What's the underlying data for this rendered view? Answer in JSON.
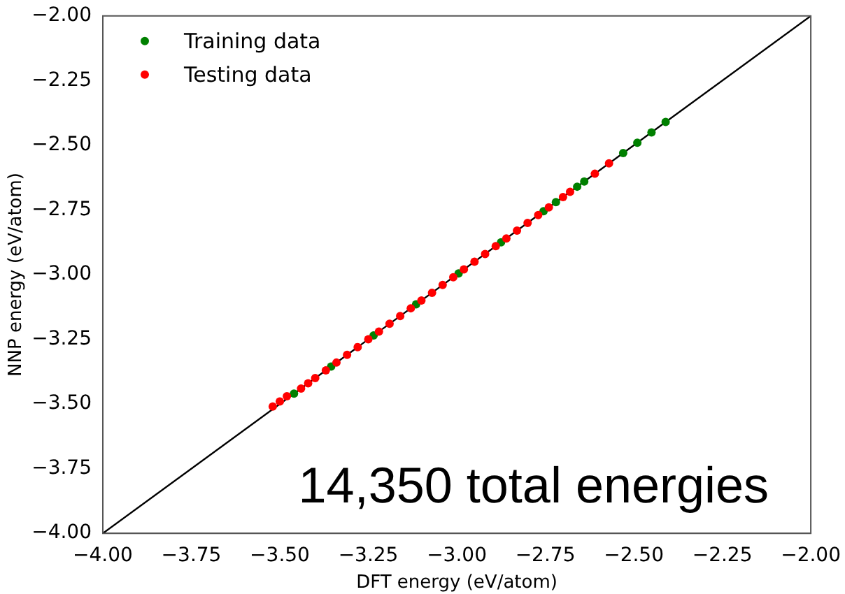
{
  "chart_data": {
    "type": "scatter",
    "xlabel": "DFT energy (eV/atom)",
    "ylabel": "NNP energy (eV/atom)",
    "xlim": [
      -4,
      -2
    ],
    "ylim": [
      -4,
      -2
    ],
    "xticks": [
      {
        "value": -4,
        "label": "−4.00"
      },
      {
        "value": -3.75,
        "label": "−3.75"
      },
      {
        "value": -3.5,
        "label": "−3.50"
      },
      {
        "value": -3.25,
        "label": "−3.25"
      },
      {
        "value": -3,
        "label": "−3.00"
      },
      {
        "value": -2.75,
        "label": "−2.75"
      },
      {
        "value": -2.5,
        "label": "−2.50"
      },
      {
        "value": -2.25,
        "label": "−2.25"
      },
      {
        "value": -2,
        "label": "−2.00"
      }
    ],
    "yticks": [
      {
        "value": -4,
        "label": "−4.00"
      },
      {
        "value": -3.75,
        "label": "−3.75"
      },
      {
        "value": -3.5,
        "label": "−3.50"
      },
      {
        "value": -3.25,
        "label": "−3.25"
      },
      {
        "value": -3,
        "label": "−3.00"
      },
      {
        "value": -2.75,
        "label": "−2.75"
      },
      {
        "value": -2.5,
        "label": "−2.50"
      },
      {
        "value": -2.25,
        "label": "−2.25"
      },
      {
        "value": -2,
        "label": "−2.00"
      }
    ],
    "grid": false,
    "legend": "top left",
    "marker": "circle",
    "annotations": [
      "14,350 total energies"
    ],
    "series": [
      {
        "type": "line",
        "color": "#000000",
        "marker": "none",
        "x": [
          -4,
          -2
        ],
        "values": [
          -4,
          -2
        ]
      },
      {
        "name": "Training data",
        "color": "#008000",
        "x": [
          -3.46,
          -3.355,
          -3.235,
          -3.115,
          -2.995,
          -2.875,
          -2.755,
          -2.72,
          -2.66,
          -2.64,
          -2.53,
          -2.49,
          -2.45,
          -2.41
        ],
        "values": [
          -3.46,
          -3.355,
          -3.235,
          -3.115,
          -2.995,
          -2.875,
          -2.755,
          -2.72,
          -2.66,
          -2.64,
          -2.53,
          -2.49,
          -2.45,
          -2.41
        ]
      },
      {
        "name": "Testing data",
        "color": "#ff0000",
        "x": [
          -3.52,
          -3.5,
          -3.48,
          -3.44,
          -3.42,
          -3.4,
          -3.37,
          -3.34,
          -3.31,
          -3.28,
          -3.25,
          -3.22,
          -3.19,
          -3.16,
          -3.13,
          -3.1,
          -3.07,
          -3.04,
          -3.01,
          -2.98,
          -2.95,
          -2.92,
          -2.89,
          -2.86,
          -2.83,
          -2.8,
          -2.77,
          -2.74,
          -2.7,
          -2.68,
          -2.61,
          -2.57
        ],
        "values": [
          -3.51,
          -3.49,
          -3.47,
          -3.44,
          -3.42,
          -3.4,
          -3.37,
          -3.34,
          -3.31,
          -3.28,
          -3.25,
          -3.22,
          -3.19,
          -3.16,
          -3.13,
          -3.1,
          -3.07,
          -3.04,
          -3.01,
          -2.98,
          -2.95,
          -2.92,
          -2.89,
          -2.86,
          -2.83,
          -2.8,
          -2.77,
          -2.74,
          -2.7,
          -2.68,
          -2.61,
          -2.57
        ]
      }
    ]
  }
}
